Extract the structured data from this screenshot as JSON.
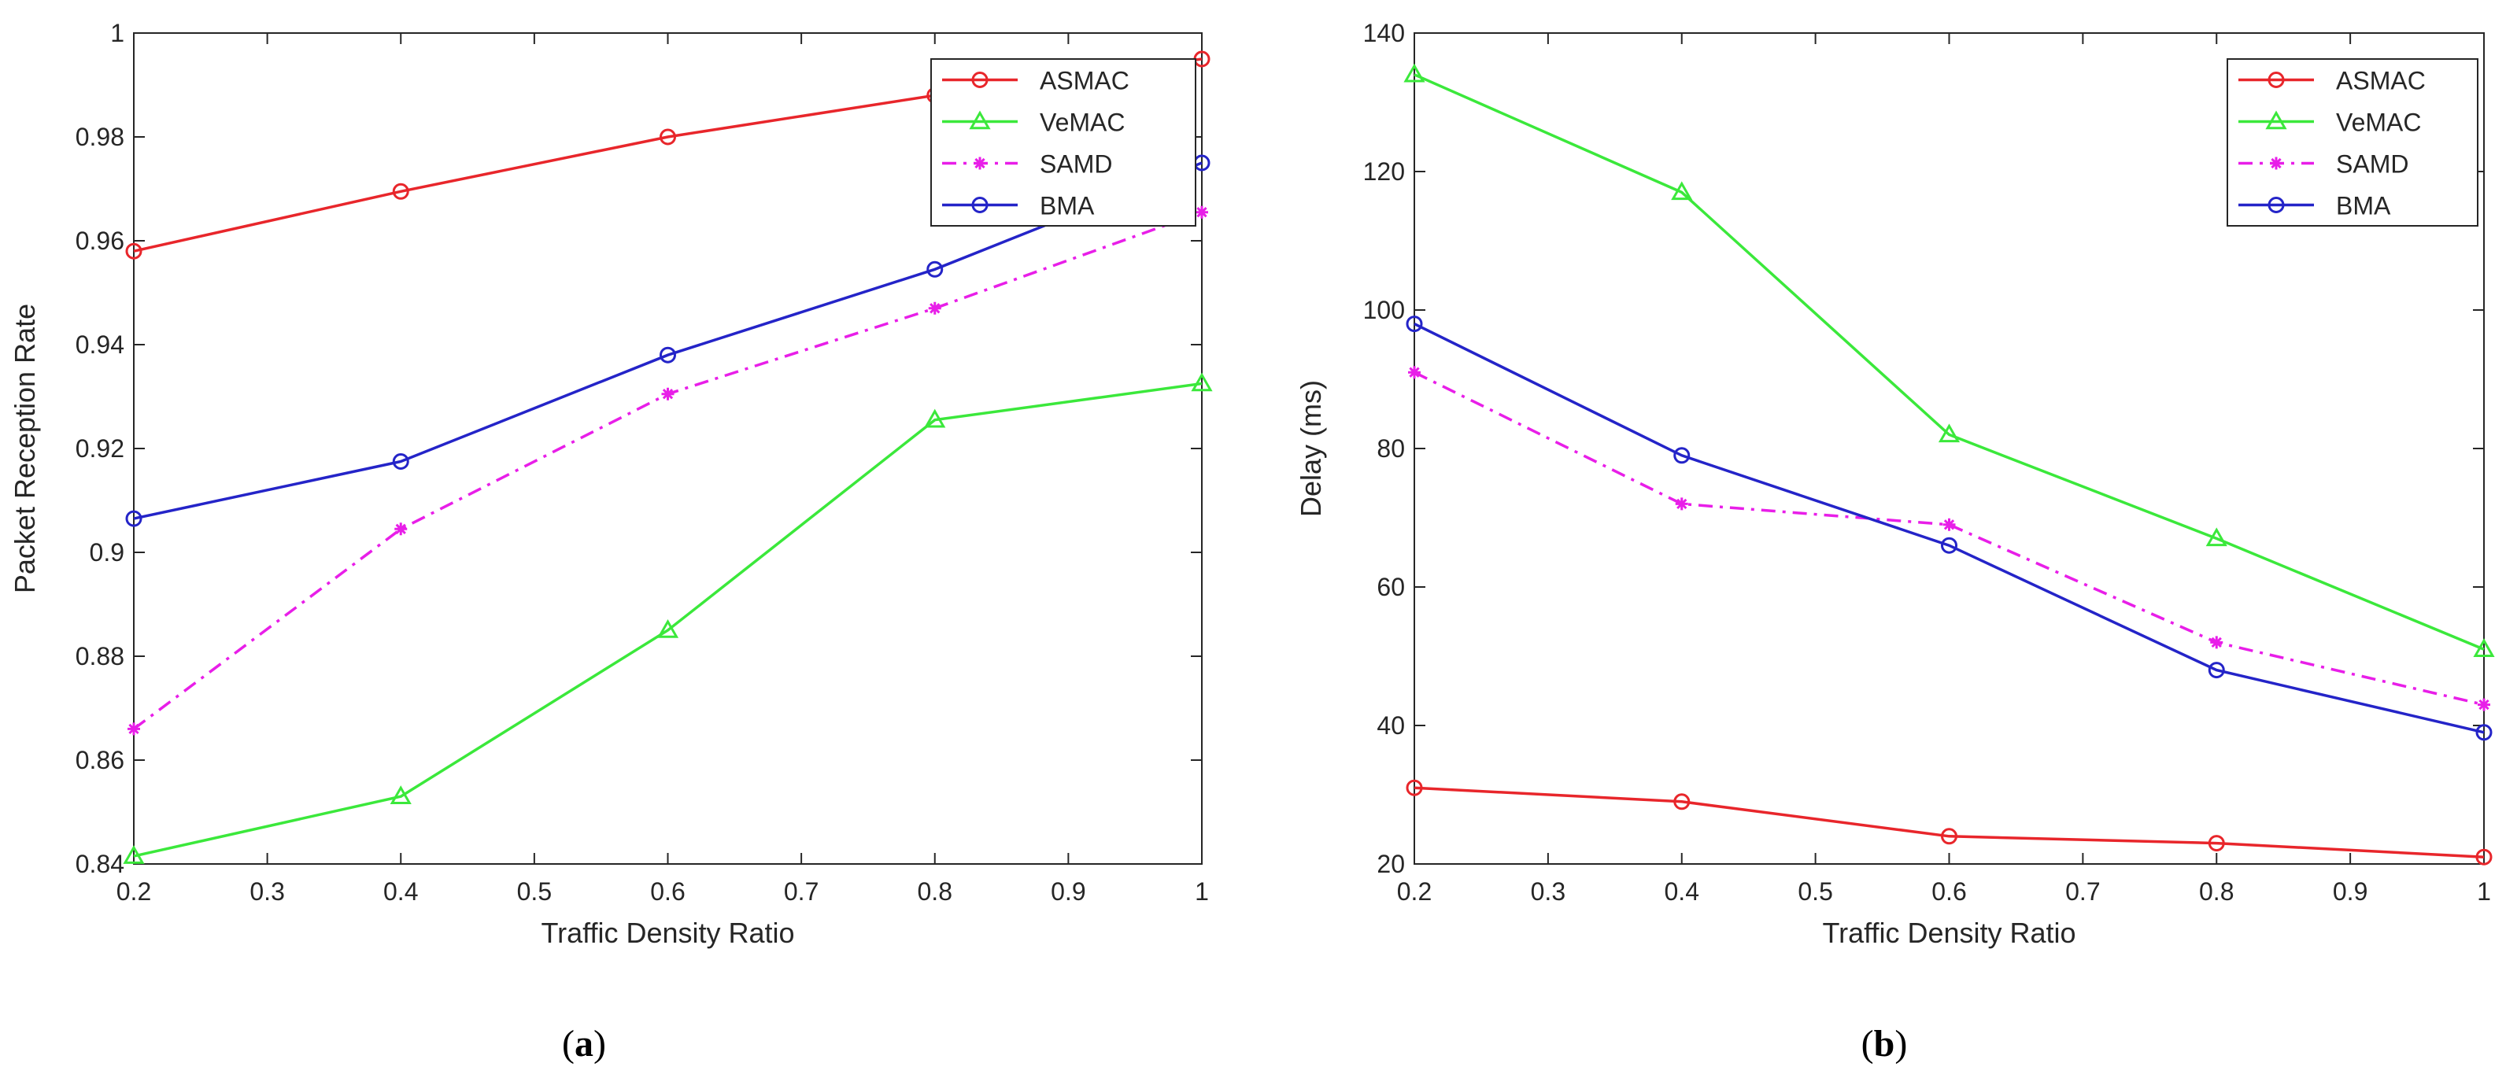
{
  "chart_data": [
    {
      "type": "line",
      "caption": "a",
      "xlabel": "Traffic Density Ratio",
      "ylabel": "Packet Reception Rate",
      "xlim": [
        0.2,
        1
      ],
      "ylim": [
        0.84,
        1
      ],
      "xticks": [
        "0.2",
        "0.3",
        "0.4",
        "0.5",
        "0.6",
        "0.7",
        "0.8",
        "0.9",
        "1"
      ],
      "yticks": [
        "0.84",
        "0.86",
        "0.88",
        "0.9",
        "0.92",
        "0.94",
        "0.96",
        "0.98",
        "1"
      ],
      "grid": false,
      "legend_position": "top-right",
      "x": [
        0.2,
        0.4,
        0.6,
        0.8,
        1.0
      ],
      "series": [
        {
          "name": "ASMAC",
          "color": "#e8262b",
          "marker": "circle",
          "dash": "solid",
          "values": [
            0.958,
            0.9695,
            0.98,
            0.988,
            0.995
          ]
        },
        {
          "name": "VeMAC",
          "color": "#3be83b",
          "marker": "triangle",
          "dash": "solid",
          "values": [
            0.8415,
            0.853,
            0.885,
            0.9255,
            0.9325
          ]
        },
        {
          "name": "SAMD",
          "color": "#e81ee8",
          "marker": "star",
          "dash": "dashdot",
          "values": [
            0.866,
            0.9045,
            0.9305,
            0.947,
            0.9655
          ]
        },
        {
          "name": "BMA",
          "color": "#2424c8",
          "marker": "circle",
          "dash": "solid",
          "values": [
            0.9065,
            0.9175,
            0.938,
            0.9545,
            0.975
          ]
        }
      ]
    },
    {
      "type": "line",
      "caption": "b",
      "xlabel": "Traffic Density Ratio",
      "ylabel": "Delay (ms)",
      "xlim": [
        0.2,
        1
      ],
      "ylim": [
        20,
        140
      ],
      "xticks": [
        "0.2",
        "0.3",
        "0.4",
        "0.5",
        "0.6",
        "0.7",
        "0.8",
        "0.9",
        "1"
      ],
      "yticks": [
        "20",
        "40",
        "60",
        "80",
        "100",
        "120",
        "140"
      ],
      "grid": false,
      "legend_position": "top-right",
      "x": [
        0.2,
        0.4,
        0.6,
        0.8,
        1.0
      ],
      "series": [
        {
          "name": "ASMAC",
          "color": "#e8262b",
          "marker": "circle",
          "dash": "solid",
          "values": [
            31,
            29,
            24,
            23,
            21
          ]
        },
        {
          "name": "VeMAC",
          "color": "#3be83b",
          "marker": "triangle",
          "dash": "solid",
          "values": [
            134,
            117,
            82,
            67,
            51
          ]
        },
        {
          "name": "SAMD",
          "color": "#e81ee8",
          "marker": "star",
          "dash": "dashdot",
          "values": [
            91,
            72,
            69,
            52,
            43
          ]
        },
        {
          "name": "BMA",
          "color": "#2424c8",
          "marker": "circle",
          "dash": "solid",
          "values": [
            98,
            79,
            66,
            48,
            39
          ]
        }
      ]
    }
  ]
}
